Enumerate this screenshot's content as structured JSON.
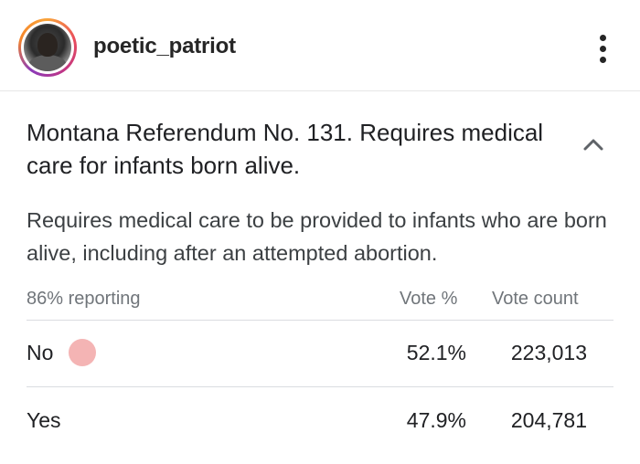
{
  "post": {
    "username": "poetic_patriot",
    "avatar_icon": "user-avatar-photo",
    "menu_icon": "more-vertical-icon"
  },
  "measure": {
    "title": "Montana Referendum No. 131. Requires medical care for infants born alive.",
    "description": "Requires medical care to be provided to infants who are born alive, including after an attempted abortion.",
    "toggle_icon": "chevron-up-icon"
  },
  "results": {
    "reporting": "86% reporting",
    "columns": {
      "vote_pct": "Vote %",
      "vote_count": "Vote count"
    },
    "rows": [
      {
        "label": "No",
        "pct": "52.1%",
        "count": "223,013",
        "leading": true,
        "color": "#f4b4b4"
      },
      {
        "label": "Yes",
        "pct": "47.9%",
        "count": "204,781",
        "leading": false
      }
    ]
  }
}
